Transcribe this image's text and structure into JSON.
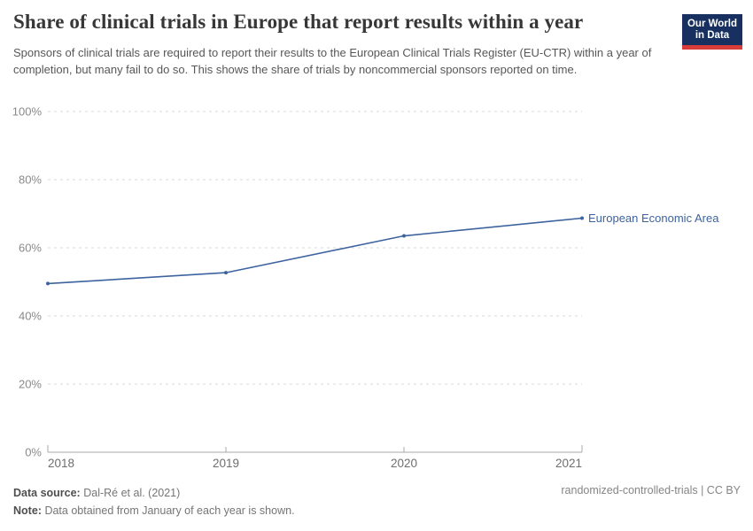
{
  "logo": {
    "line1": "Our World",
    "line2": "in Data"
  },
  "chart_data": {
    "type": "line",
    "title": "Share of clinical trials in Europe that report results within a year",
    "subtitle": "Sponsors of clinical trials are required to report their results to the European Clinical Trials Register (EU-CTR) within a year of completion, but many fail to do so. This shows the share of trials by noncommercial sponsors reported on time.",
    "x": [
      "2018",
      "2019",
      "2020",
      "2021"
    ],
    "series": [
      {
        "name": "European Economic Area",
        "values": [
          49.5,
          52.7,
          63.5,
          68.7
        ],
        "color": "#3d639e"
      }
    ],
    "ylim": [
      0,
      100
    ],
    "yticks": [
      0,
      20,
      40,
      60,
      80,
      100
    ],
    "ytick_suffix": "%",
    "grid": "dashed horizontal",
    "legend_position": "end-of-line-label"
  },
  "footer": {
    "source_label": "Data source:",
    "source_value": "Dal-Ré et al. (2021)",
    "note_label": "Note:",
    "note_value": "Data obtained from January of each year is shown.",
    "right_text": "randomized-controlled-trials | CC BY"
  },
  "colors": {
    "accent_line": "#3d639e",
    "grid": "#d9d9d9",
    "axis": "#a8a8a8",
    "ytick_text": "#8a8a8a",
    "xtick_text": "#6e6e6e",
    "title_text": "#373737",
    "subtitle_text": "#575757",
    "logo_navy": "#18305f",
    "logo_red": "#d93d3a"
  }
}
